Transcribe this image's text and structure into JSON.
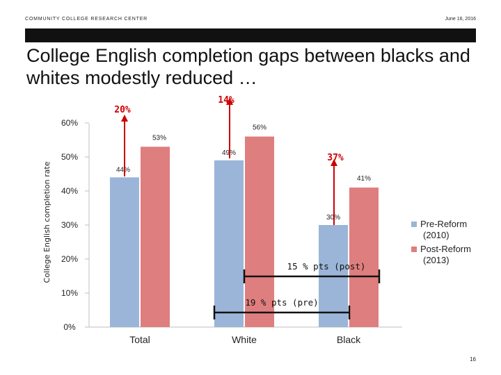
{
  "header": {
    "org": "COMMUNITY COLLEGE RESEARCH CENTER",
    "date": "June 16, 2016"
  },
  "slide": {
    "title": "College English completion gaps between blacks and whites modestly reduced …",
    "page_number": "16"
  },
  "colors": {
    "pre": "#9bb5d9",
    "post": "#df7e7e",
    "annotation": "#cc0000",
    "bracket": "#111111"
  },
  "chart_data": {
    "type": "bar",
    "categories": [
      "Total",
      "White",
      "Black"
    ],
    "series": [
      {
        "name": "Pre-Reform (2010)",
        "values": [
          44,
          49,
          30
        ]
      },
      {
        "name": "Post-Reform (2013)",
        "values": [
          53,
          56,
          41
        ]
      }
    ],
    "data_labels": [
      "44%",
      "49%",
      "30%",
      "53%",
      "56%",
      "41%"
    ],
    "ylabel": "College English completion rate",
    "yticks": [
      "0%",
      "10%",
      "20%",
      "30%",
      "40%",
      "50%",
      "60%"
    ],
    "ylim": [
      0,
      60
    ],
    "legend": {
      "placement": "right",
      "pre": "Pre-Reform (2010)",
      "post": "Post-Reform (2013)"
    },
    "annotations": {
      "gains": [
        "20%",
        "14%",
        "37%"
      ],
      "gap_post": "15 % pts (post)",
      "gap_pre": "19 % pts (pre)"
    }
  }
}
